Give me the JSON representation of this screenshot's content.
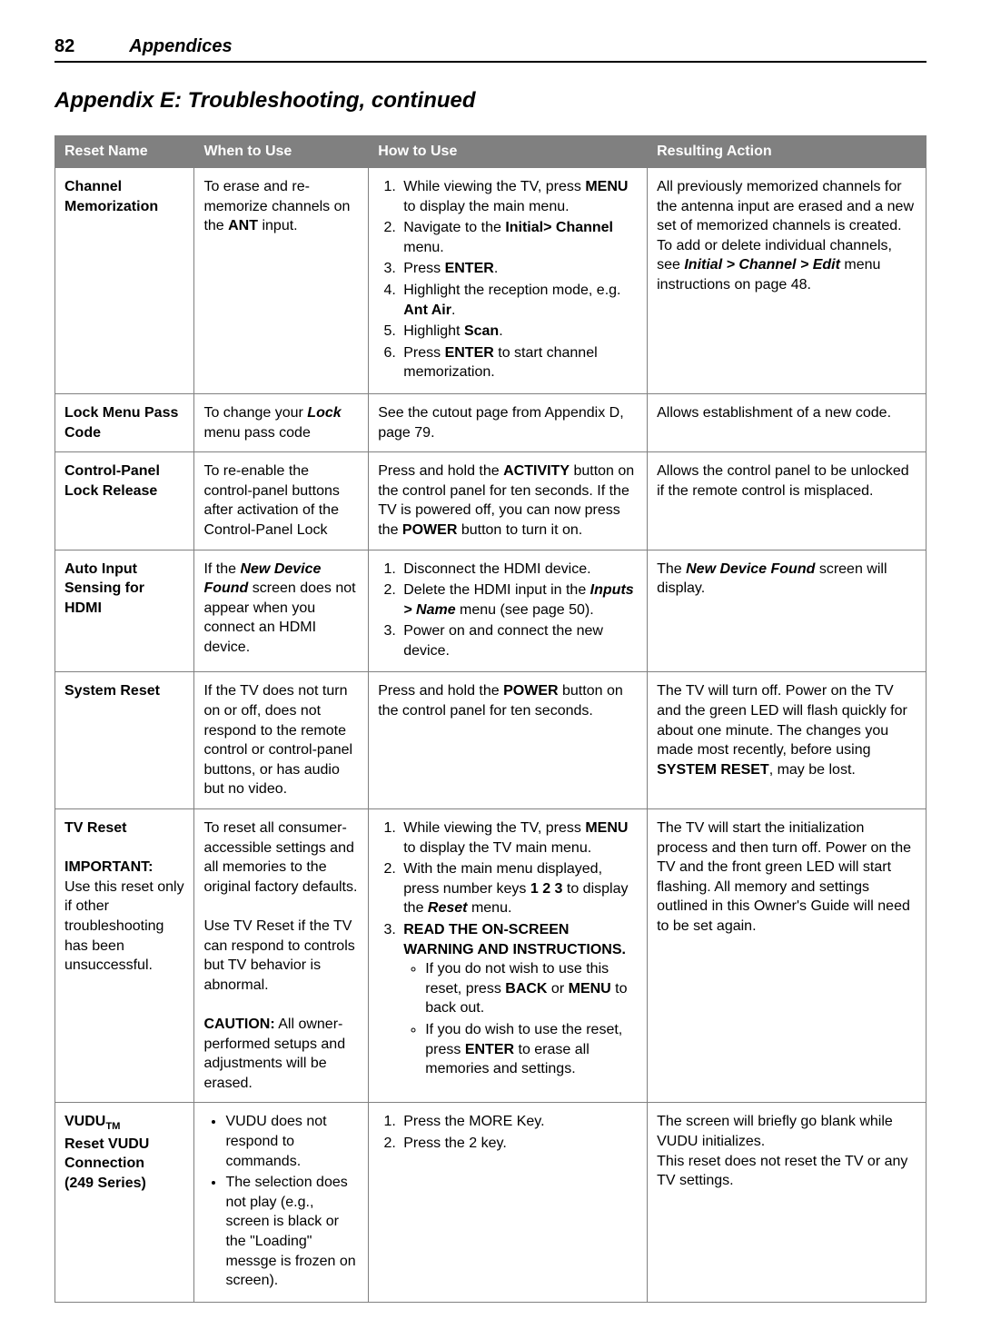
{
  "header": {
    "page_number": "82",
    "section": "Appendices",
    "title": "Appendix E:  Troubleshooting, continued"
  },
  "table": {
    "columns": [
      "Reset Name",
      "When to Use",
      "How to Use",
      "Resulting Action"
    ],
    "rows": {
      "channel_memorization": {
        "name_html": "<span class='b'>Channel Memorization</span>",
        "when_html": "To erase and re-memorize channels on the <span class='b'>ANT</span> input.",
        "how_html": "<ol><li>While viewing the TV, press <span class='b'>MENU</span> to display the main menu.</li><li>Navigate to the <span class='b'>Initial&gt; Channel</span> menu.</li><li>Press <span class='b'>ENTER</span>.</li><li>Highlight the reception mode, e.g. <span class='b'>Ant Air</span>.</li><li>Highlight <span class='b'>Scan</span>.</li><li>Press <span class='b'>ENTER</span> to start channel memorization.</li></ol>",
        "result_html": "All previously memorized channels for the antenna input are erased and a new set of memorized channels is created.  To add or delete individual channels, see <span class='bi'>Initial &gt; Channel &gt; Edit</span> menu instructions on page 48."
      },
      "lock_menu": {
        "name_html": "<span class='b'>Lock Menu Pass Code</span>",
        "when_html": "To change your <span class='bi'>Lock</span> menu pass code",
        "how_html": "See the cutout page from Appendix D, page 79.",
        "result_html": "Allows establishment of a new code."
      },
      "control_panel": {
        "name_html": "<span class='b'>Control-Panel Lock Release</span>",
        "when_html": "To re-enable the control-panel buttons after activation of the Control-Panel Lock",
        "how_html": "Press and hold the <span class='b'>ACTIVITY</span> button on the control panel for ten seconds.  If the TV is powered off, you can now press the <span class='b'>POWER</span> button to turn it on.",
        "result_html": "Allows the control panel to be unlocked if the remote control is misplaced."
      },
      "auto_input": {
        "name_html": "<span class='b'>Auto Input Sensing for HDMI</span>",
        "when_html": "If the <span class='bi'>New Device Found</span> screen does not appear when you connect an HDMI device.",
        "how_html": "<ol><li>Disconnect the HDMI device.</li><li>Delete the HDMI input in the <span class='bi'>Inputs &gt; Name</span> menu (see page 50).</li><li>Power on and connect the new device.</li></ol>",
        "result_html": "The <span class='bi'>New Device Found</span> screen will display."
      },
      "system_reset": {
        "name_html": "<span class='b'>System Reset</span>",
        "when_html": "If the TV does not turn on or off, does not respond to the remote control or control-panel buttons, or has audio but no video.",
        "how_html": "Press and hold the <span class='b'>POWER</span> button on the control panel for ten seconds.",
        "result_html": "The TV will turn off.  Power on the TV and the green LED will flash quickly for about one minute.  The changes you made most recently, before using <span class='b'>SYSTEM RESET</span>, may be lost."
      },
      "tv_reset": {
        "name_html": "<span class='b'>TV Reset</span><br><br><span class='b'>IMPORTANT:</span><br>Use this reset only if other troubleshooting has been unsuccessful.",
        "when_html": "To reset all consumer-accessible settings and all memories to the original factory defaults.<br><br>Use TV Reset if the TV can respond to controls but TV behavior is abnormal.<br><br><span class='b'>CAUTION:</span>  All owner-performed setups and adjustments will be erased.",
        "how_html": "<ol><li>While viewing the TV, press <span class='b'>MENU</span> to display the TV main menu.</li><li>With the main menu displayed, press number keys <span class='b'>1  2  3</span> to display the <span class='bi'>Reset</span> menu.</li><li><span class='b'>READ THE ON-SCREEN WARNING AND INSTRUCTIONS.</span><ul><li>If you do not wish to use this reset, press <span class='b'>BACK</span> or <span class='b'>MENU</span> to back out.</li><li>If you do wish to use the reset, press <span class='b'>ENTER</span> to erase all memories and settings.</li></ul></li></ol>",
        "result_html": "The TV will start the initialization process and then turn off.  Power on the TV and the front green LED will start flashing.  All memory and settings outlined in this Owner's Guide will need to be set again."
      },
      "vudu": {
        "name_html": "<span class='b'>VUDU<span class='sub'>TM</span><br>Reset VUDU Connection<br>(249 Series)</span>",
        "when_html": "<ul><li>VUDU does not respond to commands.</li><li>The selection does not play (e.g., screen is black or the \"Loading\" messge is frozen on screen).</li></ul>",
        "how_html": "<ol><li>Press the MORE Key.</li><li>Press the 2 key.</li></ol>",
        "result_html": "The screen will briefly go blank while VUDU initializes.<br>This reset does not reset the TV or any TV settings."
      }
    }
  }
}
